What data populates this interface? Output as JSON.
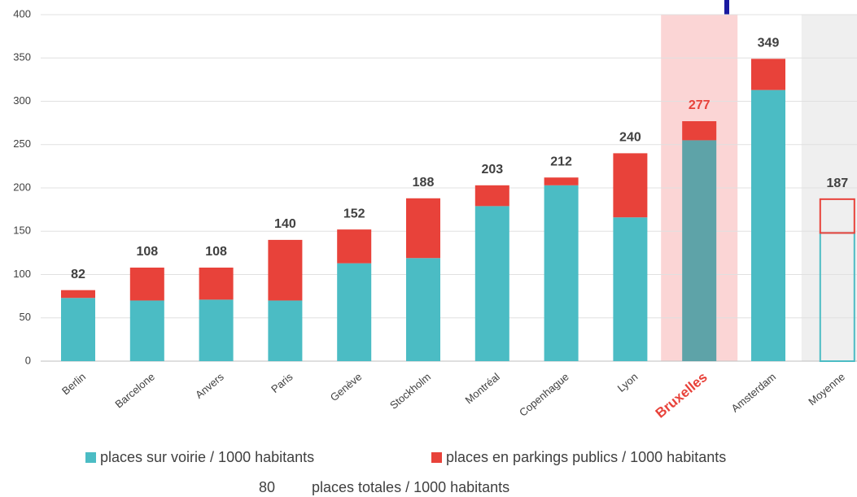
{
  "chart_data": {
    "type": "stacked_bar",
    "categories": [
      "Berlin",
      "Barcelone",
      "Anvers",
      "Paris",
      "Genève",
      "Stockholm",
      "Montréal",
      "Copenhague",
      "Lyon",
      "Bruxelles",
      "Amsterdam",
      "Moyenne"
    ],
    "series": [
      {
        "name": "places sur voirie / 1000 habitants",
        "color": "#4bbcc4",
        "values": [
          73,
          70,
          71,
          70,
          113,
          119,
          179,
          203,
          166,
          255,
          313,
          148
        ]
      },
      {
        "name": "places en parkings publics / 1000 habitants",
        "color": "#e8423a",
        "values": [
          9,
          38,
          37,
          70,
          39,
          69,
          24,
          9,
          74,
          22,
          36,
          39
        ]
      }
    ],
    "totals": [
      82,
      108,
      108,
      140,
      152,
      188,
      203,
      212,
      240,
      277,
      349,
      187
    ],
    "total_legend": {
      "sample": "80",
      "label": "places totales / 1000 habitants"
    },
    "ylim": [
      0,
      400
    ],
    "yticks": [
      0,
      50,
      100,
      150,
      200,
      250,
      300,
      350,
      400
    ],
    "grid": true,
    "highlight": "Bruxelles",
    "outline": "Moyenne"
  }
}
